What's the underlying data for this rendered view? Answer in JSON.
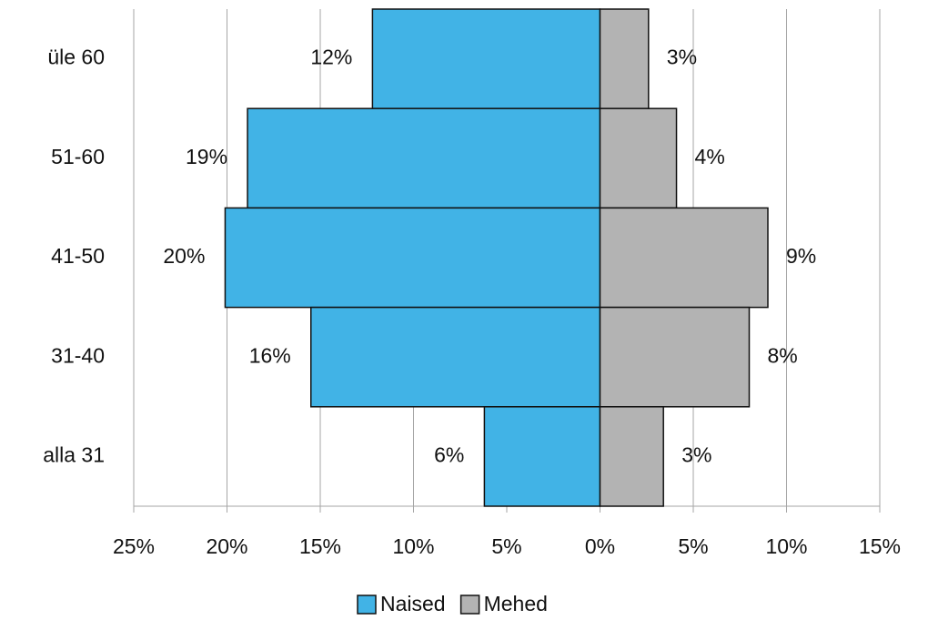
{
  "chart_data": {
    "type": "pyramid",
    "categories": [
      "üle 60",
      "51-60",
      "41-50",
      "31-40",
      "alla 31"
    ],
    "series": [
      {
        "name": "Naised",
        "color": "#41b3e6",
        "values": [
          -12.2,
          -18.9,
          -20.1,
          -15.5,
          -6.2
        ],
        "value_labels": [
          "12%",
          "19%",
          "20%",
          "16%",
          "6%"
        ]
      },
      {
        "name": "Mehed",
        "color": "#b3b3b3",
        "values": [
          2.6,
          4.1,
          9.0,
          8.0,
          3.4
        ],
        "value_labels": [
          "3%",
          "4%",
          "9%",
          "8%",
          "3%"
        ]
      }
    ],
    "xlim": [
      -25,
      15
    ],
    "xticks": [
      {
        "value": -25,
        "label": "25%"
      },
      {
        "value": -20,
        "label": "20%"
      },
      {
        "value": -15,
        "label": "15%"
      },
      {
        "value": -10,
        "label": "10%"
      },
      {
        "value": -5,
        "label": "5%"
      },
      {
        "value": 0,
        "label": "0%"
      },
      {
        "value": 5,
        "label": "5%"
      },
      {
        "value": 10,
        "label": "10%"
      },
      {
        "value": 15,
        "label": "15%"
      }
    ],
    "grid": true,
    "legend": "bottom"
  }
}
